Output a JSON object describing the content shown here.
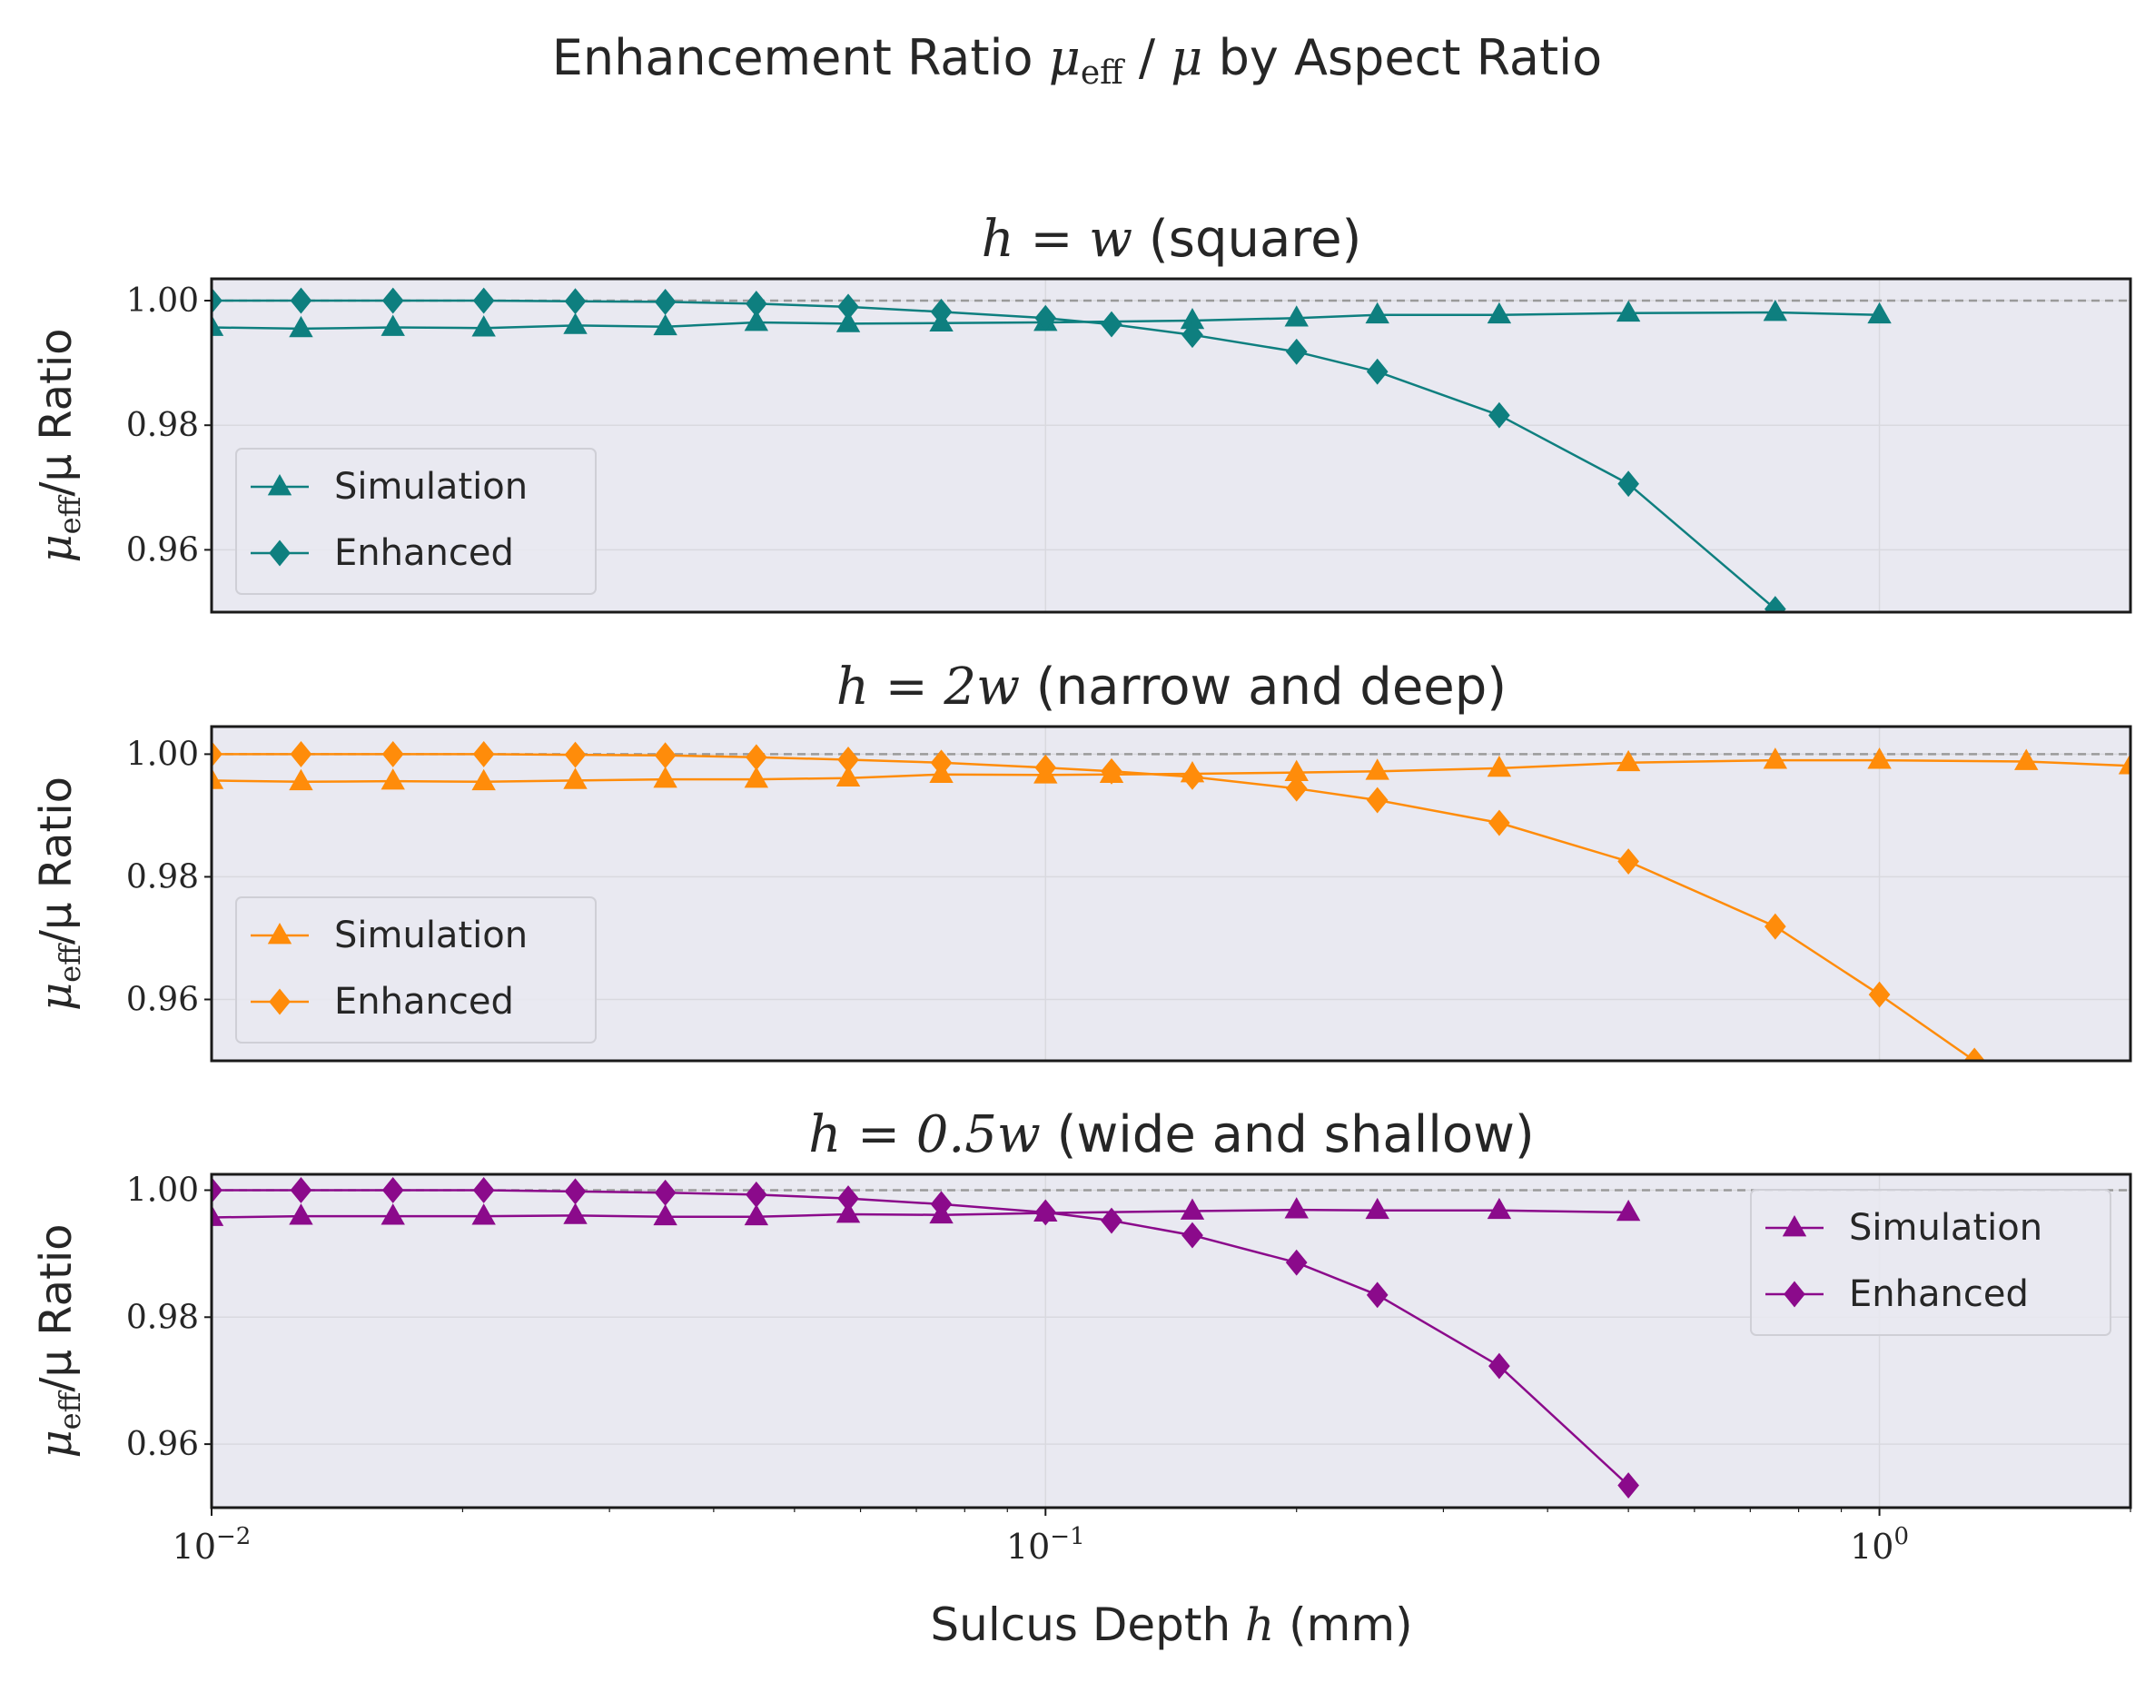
{
  "figure": {
    "title_prefix": "Enhancement Ratio ",
    "title_mu": "μ",
    "title_eff": "eff",
    "title_slash": " / ",
    "title_mu2": "μ",
    "title_suffix": " by Aspect Ratio",
    "xlabel_prefix": "Sulcus Depth ",
    "xlabel_var": "h",
    "xlabel_suffix": " (mm)",
    "ylabel_mu": "μ",
    "ylabel_eff": "eff",
    "ylabel_rest": "/μ Ratio",
    "x_tick_base": "10",
    "x_ticks": [
      {
        "value": 0.01,
        "exp": "−2"
      },
      {
        "value": 0.1,
        "exp": "−1"
      },
      {
        "value": 1,
        "exp": "0"
      }
    ],
    "y_ticks": [
      "1.00",
      "0.98",
      "0.96"
    ]
  },
  "colors": {
    "panel_bg": "#e9e9f1",
    "grid": "#d9d9df",
    "reference_line": "#9a9a9a",
    "teal": "#0e7f7f",
    "orange": "#ff8c0a",
    "purple": "#8b0a8b"
  },
  "chart_data": [
    {
      "type": "line",
      "title_math": "h = w",
      "title_text": " (square)",
      "xscale": "log",
      "xlim": [
        0.01,
        2.0
      ],
      "ylim": [
        0.95,
        1.0035
      ],
      "ylabel": "μeff/μ Ratio",
      "xlabel": "Sulcus Depth h (mm)",
      "reference_line_y": 1.0,
      "grid": true,
      "legend_position": "lower-left",
      "color": "#0e7f7f",
      "series": [
        {
          "name": "Simulation",
          "marker": "triangle",
          "x": [
            0.01,
            0.0128,
            0.0165,
            0.0212,
            0.0273,
            0.035,
            0.045,
            0.058,
            0.075,
            0.1,
            0.15,
            0.2,
            0.25,
            0.35,
            0.5,
            0.75,
            1.0
          ],
          "y": [
            0.9957,
            0.9955,
            0.9957,
            0.9956,
            0.996,
            0.9958,
            0.9965,
            0.9963,
            0.9964,
            0.9965,
            0.9968,
            0.9972,
            0.9977,
            0.9977,
            0.998,
            0.9981,
            0.9977
          ]
        },
        {
          "name": "Enhanced",
          "marker": "diamond",
          "x": [
            0.01,
            0.0128,
            0.0165,
            0.0212,
            0.0273,
            0.035,
            0.045,
            0.058,
            0.075,
            0.1,
            0.12,
            0.15,
            0.2,
            0.25,
            0.35,
            0.5,
            0.75
          ],
          "y": [
            1.0,
            1.0,
            1.0,
            1.0,
            0.9999,
            0.9998,
            0.9995,
            0.999,
            0.9982,
            0.9972,
            0.9962,
            0.9945,
            0.9918,
            0.9886,
            0.9816,
            0.9706,
            0.9505
          ]
        }
      ]
    },
    {
      "type": "line",
      "title_math": "h = 2w",
      "title_text": " (narrow and deep)",
      "xscale": "log",
      "xlim": [
        0.01,
        2.0
      ],
      "ylim": [
        0.95,
        1.0045
      ],
      "ylabel": "μeff/μ Ratio",
      "xlabel": "Sulcus Depth h (mm)",
      "reference_line_y": 1.0,
      "grid": true,
      "legend_position": "lower-left",
      "color": "#ff8c0a",
      "series": [
        {
          "name": "Simulation",
          "marker": "triangle",
          "x": [
            0.01,
            0.0128,
            0.0165,
            0.0212,
            0.0273,
            0.035,
            0.045,
            0.058,
            0.075,
            0.1,
            0.12,
            0.15,
            0.2,
            0.25,
            0.35,
            0.5,
            0.75,
            1.0,
            1.5,
            2.0
          ],
          "y": [
            0.9957,
            0.9955,
            0.9956,
            0.9955,
            0.9957,
            0.9959,
            0.9959,
            0.9961,
            0.9967,
            0.9966,
            0.9967,
            0.9968,
            0.997,
            0.9972,
            0.9977,
            0.9986,
            0.999,
            0.999,
            0.9988,
            0.9981
          ]
        },
        {
          "name": "Enhanced",
          "marker": "diamond",
          "x": [
            0.01,
            0.0128,
            0.0165,
            0.0212,
            0.0273,
            0.035,
            0.045,
            0.058,
            0.075,
            0.1,
            0.12,
            0.15,
            0.2,
            0.25,
            0.35,
            0.5,
            0.75,
            1.0,
            1.3
          ],
          "y": [
            1.0,
            1.0,
            1.0,
            1.0,
            0.9999,
            0.9998,
            0.9995,
            0.9991,
            0.9986,
            0.9978,
            0.9972,
            0.9963,
            0.9944,
            0.9925,
            0.9888,
            0.9825,
            0.9719,
            0.9608,
            0.95
          ]
        }
      ]
    },
    {
      "type": "line",
      "title_math": "h = 0.5w",
      "title_text": " (wide and shallow)",
      "xscale": "log",
      "xlim": [
        0.01,
        2.0
      ],
      "ylim": [
        0.95,
        1.0025
      ],
      "ylabel": "μeff/μ Ratio",
      "xlabel": "Sulcus Depth h (mm)",
      "reference_line_y": 1.0,
      "grid": true,
      "legend_position": "upper-right",
      "color": "#8b0a8b",
      "series": [
        {
          "name": "Simulation",
          "marker": "triangle",
          "x": [
            0.01,
            0.0128,
            0.0165,
            0.0212,
            0.0273,
            0.035,
            0.045,
            0.058,
            0.075,
            0.1,
            0.15,
            0.2,
            0.25,
            0.35,
            0.5
          ],
          "y": [
            0.9957,
            0.9959,
            0.9959,
            0.9959,
            0.996,
            0.9958,
            0.9958,
            0.9962,
            0.9961,
            0.9964,
            0.9967,
            0.9969,
            0.9968,
            0.9968,
            0.9965
          ]
        },
        {
          "name": "Enhanced",
          "marker": "diamond",
          "x": [
            0.01,
            0.0128,
            0.0165,
            0.0212,
            0.0273,
            0.035,
            0.045,
            0.058,
            0.075,
            0.1,
            0.12,
            0.15,
            0.2,
            0.25,
            0.35,
            0.5
          ],
          "y": [
            1.0,
            1.0,
            1.0,
            1.0,
            0.9998,
            0.9996,
            0.9993,
            0.9987,
            0.9978,
            0.9965,
            0.9952,
            0.9929,
            0.9886,
            0.9835,
            0.9723,
            0.9535
          ]
        }
      ]
    }
  ]
}
